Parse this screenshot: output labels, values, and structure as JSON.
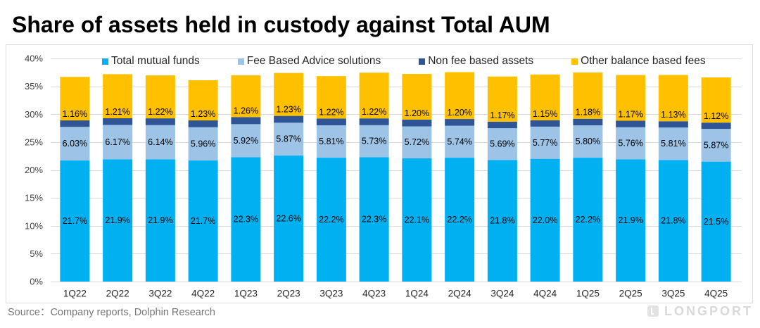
{
  "source": "Source：Company reports, Dolphin Research",
  "watermark": "LONGPORT",
  "chart_data": {
    "type": "bar",
    "stacked": true,
    "title": "Share of assets held in custody against Total AUM",
    "categories": [
      "1Q22",
      "2Q22",
      "3Q22",
      "4Q22",
      "1Q23",
      "2Q23",
      "3Q23",
      "4Q23",
      "1Q24",
      "2Q24",
      "3Q24",
      "4Q24",
      "1Q25",
      "2Q25",
      "3Q25",
      "4Q25"
    ],
    "ylim": [
      0,
      40
    ],
    "yticks": [
      0,
      5,
      10,
      15,
      20,
      25,
      30,
      35,
      40
    ],
    "ytick_labels": [
      "0%",
      "5%",
      "10%",
      "15%",
      "20%",
      "25%",
      "30%",
      "35%",
      "40%"
    ],
    "grid": true,
    "legend_position": "top",
    "series": [
      {
        "name": "Total mutual funds",
        "color": "#00B0F0",
        "label_position": "center",
        "values": [
          21.7,
          21.9,
          21.9,
          21.7,
          22.3,
          22.6,
          22.2,
          22.3,
          22.1,
          22.2,
          21.8,
          22.0,
          22.2,
          21.9,
          21.8,
          21.5
        ],
        "labels": [
          "21.7%",
          "21.9%",
          "21.9%",
          "21.7%",
          "22.3%",
          "22.6%",
          "22.2%",
          "22.3%",
          "22.1%",
          "22.2%",
          "21.8%",
          "22.0%",
          "22.2%",
          "21.9%",
          "21.8%",
          "21.5%"
        ]
      },
      {
        "name": "Fee Based Advice solutions",
        "color": "#9DC3E6",
        "label_position": "center",
        "values": [
          6.03,
          6.17,
          6.14,
          5.96,
          5.92,
          5.87,
          5.81,
          5.73,
          5.72,
          5.74,
          5.69,
          5.77,
          5.8,
          5.76,
          5.81,
          5.87
        ],
        "labels": [
          "6.03%",
          "6.17%",
          "6.14%",
          "5.96%",
          "5.92%",
          "5.87%",
          "5.81%",
          "5.73%",
          "5.72%",
          "5.74%",
          "5.69%",
          "5.77%",
          "5.80%",
          "5.76%",
          "5.81%",
          "5.87%"
        ]
      },
      {
        "name": "Non fee based assets",
        "color": "#2F5597",
        "label_position": "above",
        "values": [
          1.16,
          1.21,
          1.22,
          1.23,
          1.26,
          1.23,
          1.22,
          1.22,
          1.2,
          1.2,
          1.17,
          1.15,
          1.18,
          1.17,
          1.13,
          1.12
        ],
        "labels": [
          "1.16%",
          "1.21%",
          "1.22%",
          "1.23%",
          "1.26%",
          "1.23%",
          "1.22%",
          "1.22%",
          "1.20%",
          "1.20%",
          "1.17%",
          "1.15%",
          "1.18%",
          "1.17%",
          "1.13%",
          "1.12%"
        ]
      },
      {
        "name": "Other balance based fees",
        "color": "#FFC000",
        "values": [
          7.8,
          7.9,
          7.7,
          7.2,
          7.5,
          7.7,
          7.6,
          8.2,
          8.2,
          8.4,
          8.1,
          8.2,
          8.3,
          8.2,
          8.3,
          8.1
        ]
      }
    ]
  }
}
